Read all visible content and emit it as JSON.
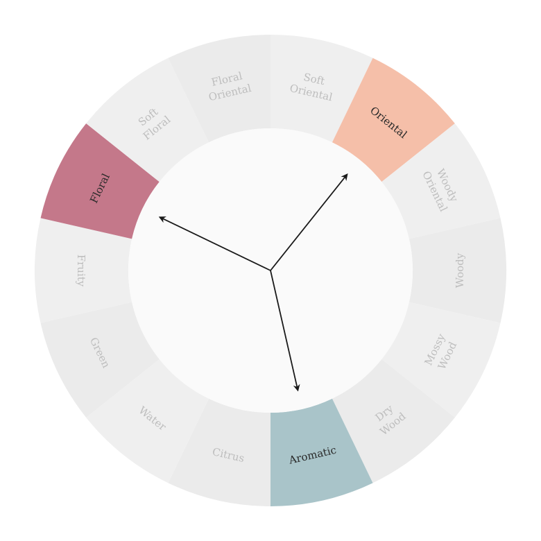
{
  "wheel": {
    "segments": [
      {
        "lines": [
          "Soft",
          "Oriental"
        ],
        "highlighted": false
      },
      {
        "lines": [
          "Oriental"
        ],
        "highlighted": true,
        "color": "#f5bfa9"
      },
      {
        "lines": [
          "Woody",
          "Oriental"
        ],
        "highlighted": false
      },
      {
        "lines": [
          "Woody"
        ],
        "highlighted": false
      },
      {
        "lines": [
          "Mossy",
          "Wood"
        ],
        "highlighted": false
      },
      {
        "lines": [
          "Dry",
          "Wood"
        ],
        "highlighted": false
      },
      {
        "lines": [
          "Aromatic"
        ],
        "highlighted": true,
        "color": "#a9c4c9"
      },
      {
        "lines": [
          "Citrus"
        ],
        "highlighted": false
      },
      {
        "lines": [
          "Water"
        ],
        "highlighted": false
      },
      {
        "lines": [
          "Green"
        ],
        "highlighted": false
      },
      {
        "lines": [
          "Fruity"
        ],
        "highlighted": false
      },
      {
        "lines": [
          "Floral"
        ],
        "highlighted": true,
        "color": "#c4788a"
      },
      {
        "lines": [
          "Soft",
          "Floral"
        ],
        "highlighted": false
      },
      {
        "lines": [
          "Floral",
          "Oriental"
        ],
        "highlighted": false
      }
    ],
    "pointers": [
      "Oriental",
      "Floral",
      "Aromatic"
    ],
    "colors": {
      "segment_light": "#efefef",
      "segment_alt": "#ebebeb",
      "inactive_text": "#bdbdbd",
      "active_text": "#2a2a2a",
      "hub": "#fafafa",
      "arrow": "#1a1a1a"
    }
  }
}
